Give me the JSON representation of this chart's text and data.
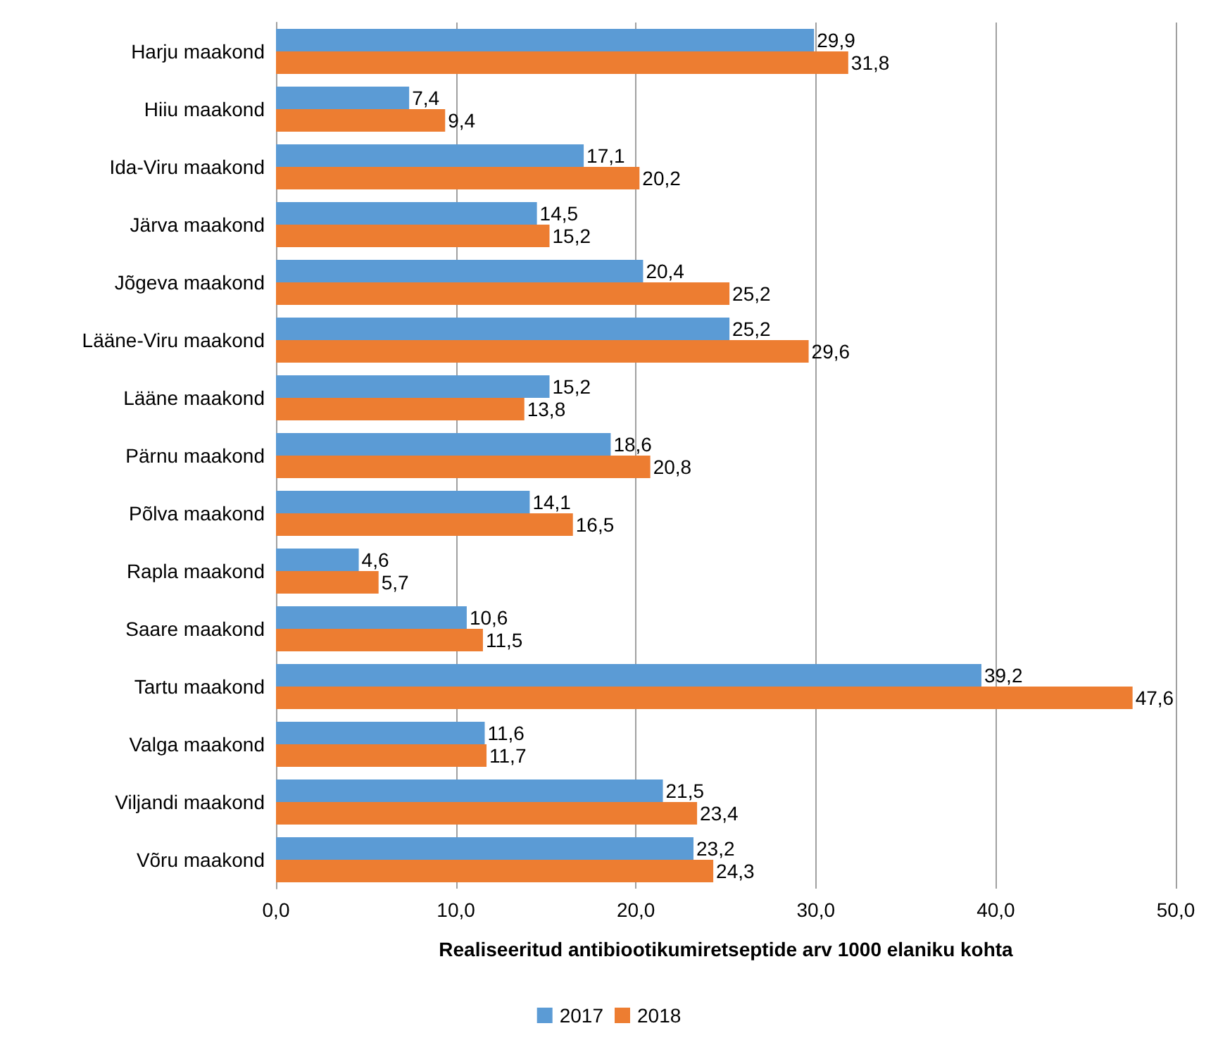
{
  "chart_data": {
    "type": "bar",
    "orientation": "horizontal",
    "xlabel": "Realiseeritud antibiootikumiretseptide arv 1000 elaniku kohta",
    "categories": [
      "Harju maakond",
      "Hiiu maakond",
      "Ida-Viru maakond",
      "Järva maakond",
      "Jõgeva maakond",
      "Lääne-Viru maakond",
      "Lääne maakond",
      "Pärnu maakond",
      "Põlva maakond",
      "Rapla maakond",
      "Saare maakond",
      "Tartu maakond",
      "Valga maakond",
      "Viljandi maakond",
      "Võru maakond"
    ],
    "series": [
      {
        "name": "2017",
        "color": "#5b9bd5",
        "values": [
          29.9,
          7.4,
          17.1,
          14.5,
          20.4,
          25.2,
          15.2,
          18.6,
          14.1,
          4.6,
          10.6,
          39.2,
          11.6,
          21.5,
          23.2
        ],
        "value_labels": [
          "29,9",
          "7,4",
          "17,1",
          "14,5",
          "20,4",
          "25,2",
          "15,2",
          "18,6",
          "14,1",
          "4,6",
          "10,6",
          "39,2",
          "11,6",
          "21,5",
          "23,2"
        ]
      },
      {
        "name": "2018",
        "color": "#ed7d31",
        "values": [
          31.8,
          9.4,
          20.2,
          15.2,
          25.2,
          29.6,
          13.8,
          20.8,
          16.5,
          5.7,
          11.5,
          47.6,
          11.7,
          23.4,
          24.3
        ],
        "value_labels": [
          "31,8",
          "9,4",
          "20,2",
          "15,2",
          "25,2",
          "29,6",
          "13,8",
          "20,8",
          "16,5",
          "5,7",
          "11,5",
          "47,6",
          "11,7",
          "23,4",
          "24,3"
        ]
      }
    ],
    "xlim": [
      0,
      50
    ],
    "xticks": [
      {
        "value": 0,
        "label": "0,0"
      },
      {
        "value": 10,
        "label": "10,0"
      },
      {
        "value": 20,
        "label": "20,0"
      },
      {
        "value": 30,
        "label": "30,0"
      },
      {
        "value": 40,
        "label": "40,0"
      },
      {
        "value": 50,
        "label": "50,0"
      }
    ],
    "grid": "x",
    "legend": "bottom"
  }
}
